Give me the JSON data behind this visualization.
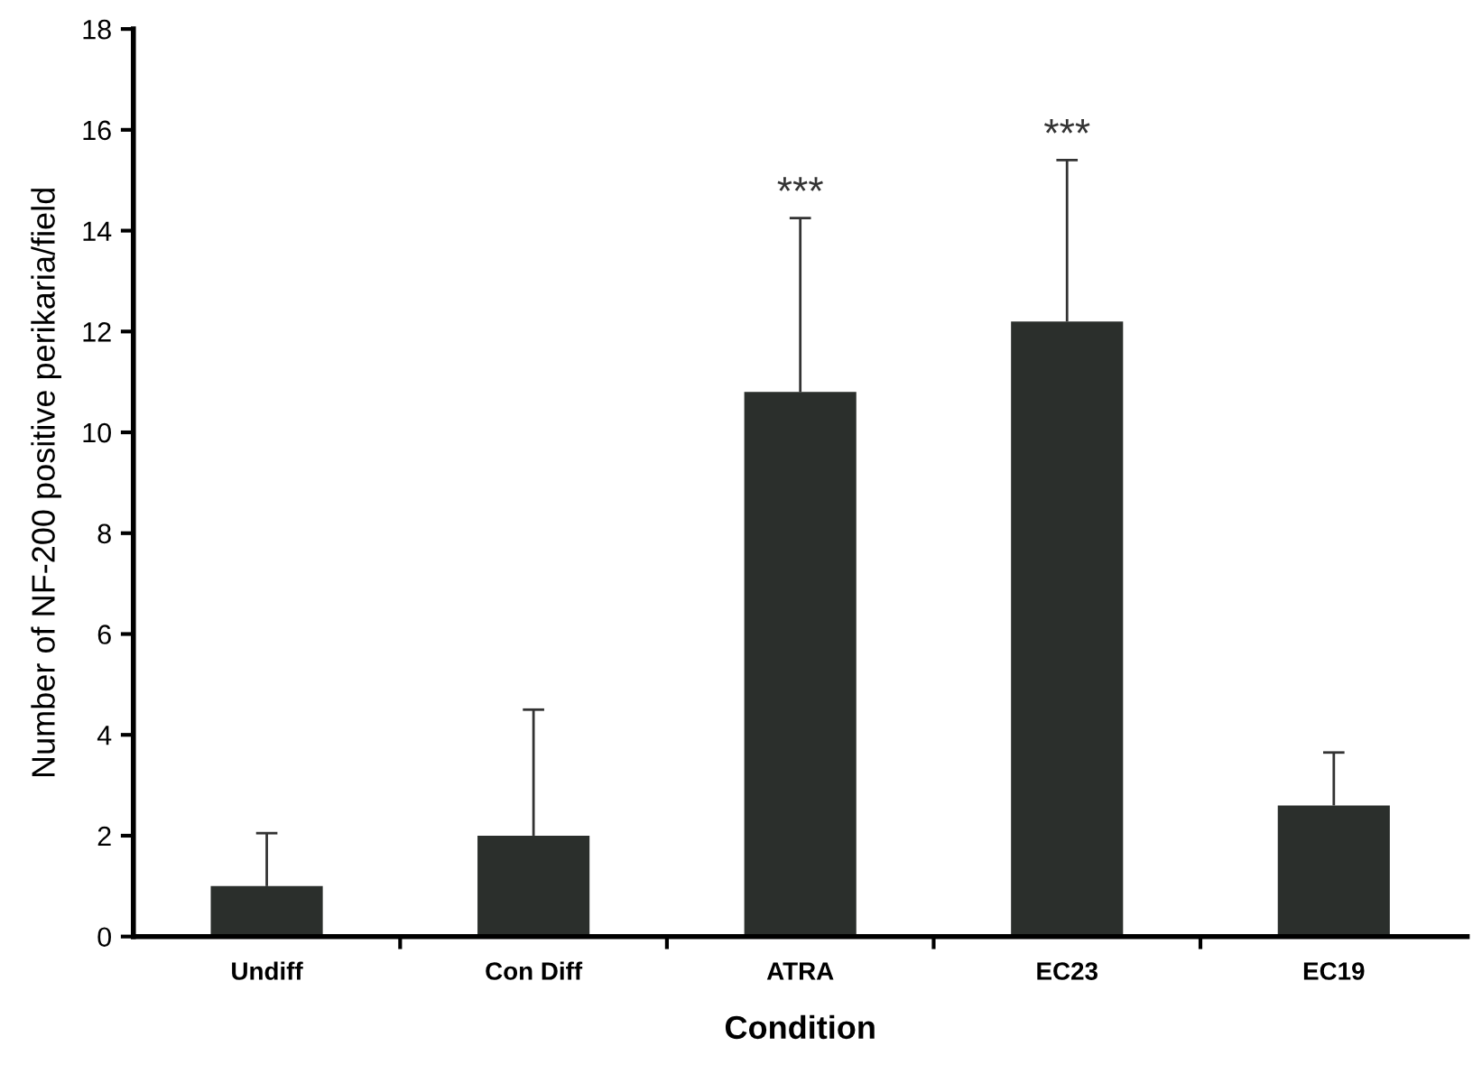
{
  "chart_data": {
    "type": "bar",
    "xlabel": "Condition",
    "ylabel": "Number of NF-200 positive perikaria/field",
    "categories": [
      "Undiff",
      "Con Diff",
      "ATRA",
      "EC23",
      "EC19"
    ],
    "values": [
      1.0,
      2.0,
      10.8,
      12.2,
      2.6
    ],
    "errors": [
      [
        1.0,
        2.05
      ],
      [
        2.0,
        4.5
      ],
      [
        10.8,
        14.25
      ],
      [
        12.2,
        15.4
      ],
      [
        2.6,
        3.65
      ]
    ],
    "color": "#2b2f2c",
    "ylim": [
      0,
      18
    ],
    "yticks": [
      0,
      2,
      4,
      6,
      8,
      10,
      12,
      14,
      16,
      18
    ],
    "grid": false,
    "legend": false,
    "annotations": [
      {
        "text": "***",
        "x": "ATRA",
        "y": 14.25
      },
      {
        "text": "***",
        "x": "EC23",
        "y": 15.4
      }
    ]
  }
}
